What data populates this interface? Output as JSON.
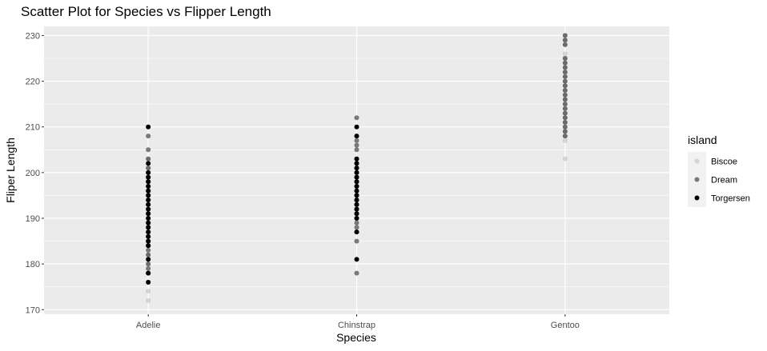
{
  "chart_data": {
    "type": "scatter",
    "title": "Scatter Plot for Species vs Flipper Length",
    "xlabel": "Species",
    "ylabel": "Fliper Length",
    "categories": [
      "Adelie",
      "Chinstrap",
      "Gentoo"
    ],
    "ylim": [
      169,
      232
    ],
    "yticks": [
      170,
      180,
      190,
      200,
      210,
      220,
      230
    ],
    "grid": true,
    "legend": {
      "title": "island",
      "placement": "right",
      "entries": [
        {
          "name": "Biscoe",
          "color": "#000000",
          "opacity": 0.12
        },
        {
          "name": "Dream",
          "color": "#000000",
          "opacity": 0.5
        },
        {
          "name": "Torgersen",
          "color": "#000000",
          "opacity": 1.0
        }
      ]
    },
    "series": [
      {
        "name": "Biscoe",
        "category": "Adelie",
        "values": [
          172,
          174,
          178,
          180,
          182,
          184,
          185,
          186,
          187,
          188,
          189,
          190,
          191,
          192,
          193,
          194,
          195,
          196,
          197,
          198,
          199,
          200,
          201,
          202,
          203
        ]
      },
      {
        "name": "Dream",
        "category": "Adelie",
        "values": [
          178,
          179,
          180,
          181,
          182,
          183,
          184,
          185,
          186,
          187,
          188,
          189,
          190,
          191,
          192,
          193,
          194,
          195,
          196,
          197,
          198,
          199,
          200,
          201,
          203,
          205,
          208
        ]
      },
      {
        "name": "Torgersen",
        "category": "Adelie",
        "values": [
          176,
          178,
          181,
          184,
          185,
          186,
          187,
          188,
          189,
          190,
          191,
          192,
          193,
          194,
          195,
          196,
          197,
          198,
          199,
          200,
          202,
          210
        ]
      },
      {
        "name": "Dream",
        "category": "Chinstrap",
        "values": [
          178,
          185,
          187,
          188,
          189,
          190,
          191,
          192,
          193,
          194,
          195,
          196,
          197,
          198,
          199,
          200,
          201,
          202,
          203,
          205,
          206,
          207,
          212
        ]
      },
      {
        "name": "Torgersen",
        "category": "Chinstrap",
        "values": [
          181,
          187,
          190,
          191,
          192,
          193,
          194,
          195,
          196,
          197,
          198,
          199,
          200,
          201,
          202,
          203,
          208,
          210
        ]
      },
      {
        "name": "Biscoe",
        "category": "Gentoo",
        "values": [
          203,
          207,
          208,
          209,
          210,
          211,
          212,
          213,
          214,
          215,
          216,
          217,
          218,
          219,
          220,
          221,
          222,
          223,
          224,
          225,
          226,
          228,
          229,
          230
        ]
      },
      {
        "name": "Dream",
        "category": "Gentoo",
        "values": [
          208,
          209,
          210,
          211,
          212,
          213,
          214,
          215,
          216,
          217,
          218,
          219,
          220,
          221,
          222,
          223,
          224,
          225,
          228,
          229,
          230
        ]
      }
    ]
  }
}
